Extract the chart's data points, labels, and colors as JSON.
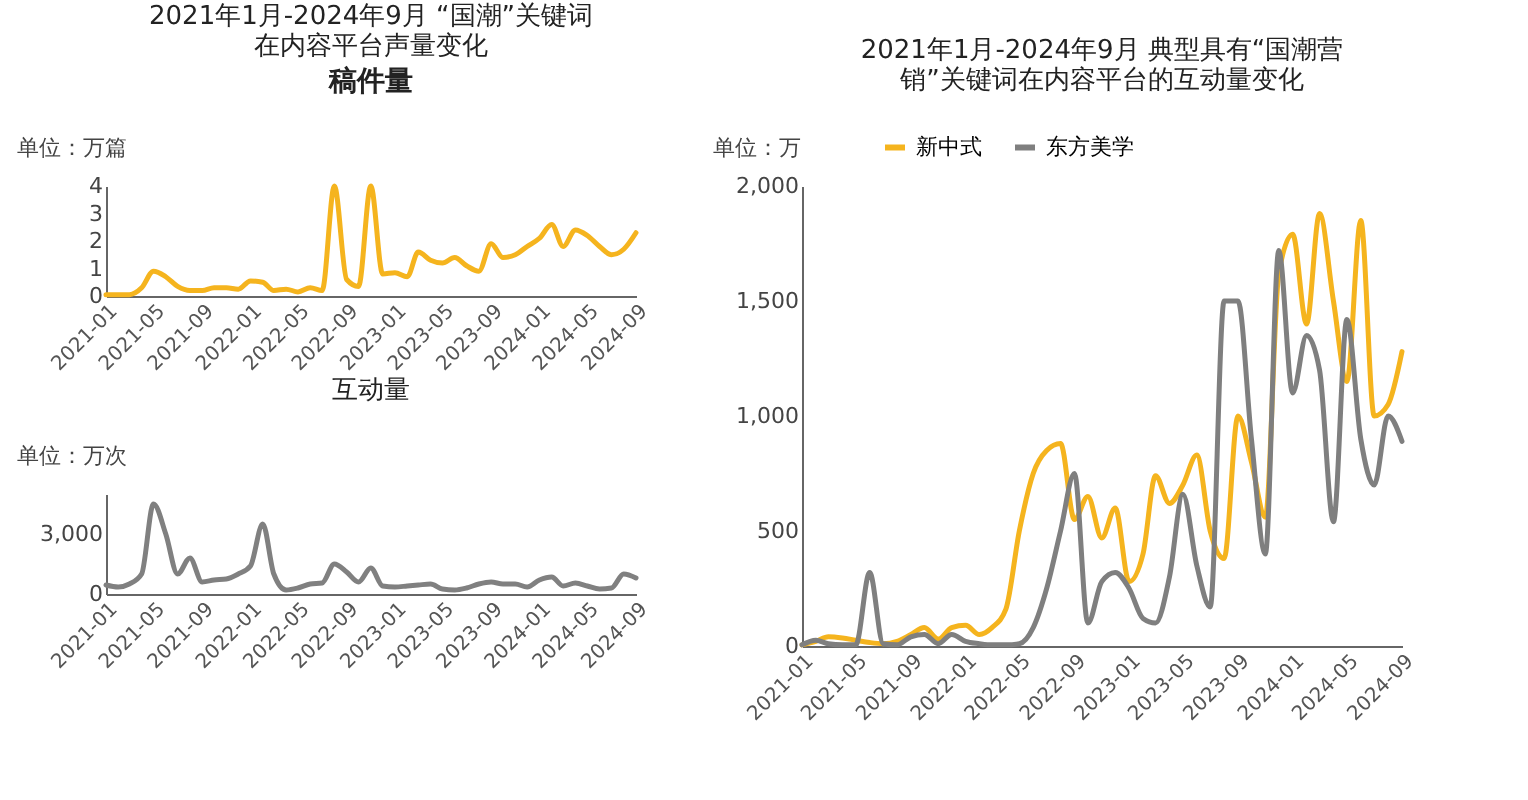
{
  "chart_data": [
    {
      "type": "line",
      "title": "2021年1月-2024年9月 “国潮”关键词在内容平台声量变化",
      "subtitle": "稿件量",
      "ylabel": "单位：万篇",
      "x": [
        "2021-01",
        "2021-02",
        "2021-03",
        "2021-04",
        "2021-05",
        "2021-06",
        "2021-07",
        "2021-08",
        "2021-09",
        "2021-10",
        "2021-11",
        "2021-12",
        "2022-01",
        "2022-02",
        "2022-03",
        "2022-04",
        "2022-05",
        "2022-06",
        "2022-07",
        "2022-08",
        "2022-09",
        "2022-10",
        "2022-11",
        "2022-12",
        "2023-01",
        "2023-02",
        "2023-03",
        "2023-04",
        "2023-05",
        "2023-06",
        "2023-07",
        "2023-08",
        "2023-09",
        "2023-10",
        "2023-11",
        "2023-12",
        "2024-01",
        "2024-02",
        "2024-03",
        "2024-04",
        "2024-05",
        "2024-06",
        "2024-07",
        "2024-08",
        "2024-09"
      ],
      "series": [
        {
          "color": "#f5b41e",
          "values": [
            0.05,
            0.05,
            0.05,
            0.3,
            0.9,
            0.7,
            0.35,
            0.2,
            0.2,
            0.3,
            0.3,
            0.25,
            0.55,
            0.5,
            0.2,
            0.25,
            0.15,
            0.3,
            0.2,
            4.0,
            0.6,
            0.35,
            4.0,
            0.8,
            0.85,
            0.7,
            1.6,
            1.3,
            1.2,
            1.4,
            1.1,
            0.9,
            1.9,
            1.4,
            1.5,
            1.8,
            2.1,
            2.6,
            1.8,
            2.4,
            2.2,
            1.8,
            1.5,
            1.7,
            2.3
          ]
        }
      ],
      "xlim": [
        "2021-01",
        "2024-09"
      ],
      "xticks": [
        "2021-01",
        "2021-05",
        "2021-09",
        "2022-01",
        "2022-05",
        "2022-09",
        "2023-01",
        "2023-05",
        "2023-09",
        "2024-01",
        "2024-05",
        "2024-09"
      ],
      "ylim": [
        0,
        4
      ],
      "yticks": [
        0,
        1,
        2,
        3,
        4
      ],
      "grid": false,
      "legend": false,
      "marker": "none",
      "line_style": "solid"
    },
    {
      "type": "line",
      "title": "互动量",
      "ylabel": "单位：万次",
      "x": [
        "2021-01",
        "2021-02",
        "2021-03",
        "2021-04",
        "2021-05",
        "2021-06",
        "2021-07",
        "2021-08",
        "2021-09",
        "2021-10",
        "2021-11",
        "2021-12",
        "2022-01",
        "2022-02",
        "2022-03",
        "2022-04",
        "2022-05",
        "2022-06",
        "2022-07",
        "2022-08",
        "2022-09",
        "2022-10",
        "2022-11",
        "2022-12",
        "2023-01",
        "2023-02",
        "2023-03",
        "2023-04",
        "2023-05",
        "2023-06",
        "2023-07",
        "2023-08",
        "2023-09",
        "2023-10",
        "2023-11",
        "2023-12",
        "2024-01",
        "2024-02",
        "2024-03",
        "2024-04",
        "2024-05",
        "2024-06",
        "2024-07",
        "2024-08",
        "2024-09"
      ],
      "series": [
        {
          "color": "#808080",
          "values": [
            450,
            350,
            500,
            1000,
            4500,
            3000,
            1000,
            1800,
            600,
            700,
            750,
            1000,
            1400,
            3500,
            1000,
            200,
            300,
            500,
            550,
            1500,
            1100,
            600,
            1300,
            400,
            350,
            400,
            450,
            500,
            250,
            200,
            300,
            500,
            600,
            500,
            500,
            350,
            700,
            850,
            400,
            550,
            400,
            250,
            300,
            1000,
            800
          ]
        }
      ],
      "xlim": [
        "2021-01",
        "2024-09"
      ],
      "xticks": [
        "2021-01",
        "2021-05",
        "2021-09",
        "2022-01",
        "2022-05",
        "2022-09",
        "2023-01",
        "2023-05",
        "2023-09",
        "2024-01",
        "2024-05",
        "2024-09"
      ],
      "ylim": [
        0,
        5000
      ],
      "yticks": [
        0,
        {
          "value": 3000,
          "label": "3,000"
        }
      ],
      "grid": false,
      "legend": false,
      "marker": "none",
      "line_style": "solid"
    },
    {
      "type": "line",
      "title": "2021年1月-2024年9月 典型具有“国潮营销”关键词在内容平台的互动量变化",
      "ylabel": "单位：万",
      "x": [
        "2021-01",
        "2021-02",
        "2021-03",
        "2021-04",
        "2021-05",
        "2021-06",
        "2021-07",
        "2021-08",
        "2021-09",
        "2021-10",
        "2021-11",
        "2021-12",
        "2022-01",
        "2022-02",
        "2022-03",
        "2022-04",
        "2022-05",
        "2022-06",
        "2022-07",
        "2022-08",
        "2022-09",
        "2022-10",
        "2022-11",
        "2022-12",
        "2023-01",
        "2023-02",
        "2023-03",
        "2023-04",
        "2023-05",
        "2023-06",
        "2023-07",
        "2023-08",
        "2023-09",
        "2023-10",
        "2023-11",
        "2023-12",
        "2024-01",
        "2024-02",
        "2024-03",
        "2024-04",
        "2024-05",
        "2024-06",
        "2024-07",
        "2024-08",
        "2024-09"
      ],
      "series": [
        {
          "name": "新中式",
          "color": "#f5b41e",
          "values": [
            5,
            20,
            40,
            35,
            25,
            15,
            10,
            20,
            50,
            80,
            30,
            80,
            90,
            50,
            80,
            160,
            500,
            750,
            850,
            880,
            550,
            650,
            470,
            600,
            280,
            400,
            740,
            620,
            700,
            830,
            500,
            380,
            1000,
            800,
            560,
            1620,
            1790,
            1400,
            1880,
            1500,
            1150,
            1850,
            1000,
            1050,
            1280
          ]
        },
        {
          "name": "东方美学",
          "color": "#7f7f7f",
          "values": [
            5,
            25,
            10,
            5,
            5,
            320,
            10,
            5,
            40,
            50,
            10,
            50,
            20,
            10,
            5,
            5,
            10,
            80,
            250,
            500,
            750,
            100,
            280,
            320,
            250,
            120,
            100,
            300,
            660,
            350,
            170,
            1500,
            1500,
            900,
            400,
            1720,
            1100,
            1350,
            1200,
            540,
            1420,
            900,
            700,
            1000,
            890
          ]
        }
      ],
      "xlim": [
        "2021-01",
        "2024-09"
      ],
      "xticks": [
        "2021-01",
        "2021-05",
        "2021-09",
        "2022-01",
        "2022-05",
        "2022-09",
        "2023-01",
        "2023-05",
        "2023-09",
        "2024-01",
        "2024-05",
        "2024-09"
      ],
      "ylim": [
        0,
        2000
      ],
      "yticks": [
        0,
        500,
        {
          "value": 1000,
          "label": "1,000"
        },
        {
          "value": 1500,
          "label": "1,500"
        },
        {
          "value": 2000,
          "label": "2,000"
        }
      ],
      "grid": false,
      "legend": "top left",
      "marker": "none",
      "line_style": "solid"
    }
  ]
}
